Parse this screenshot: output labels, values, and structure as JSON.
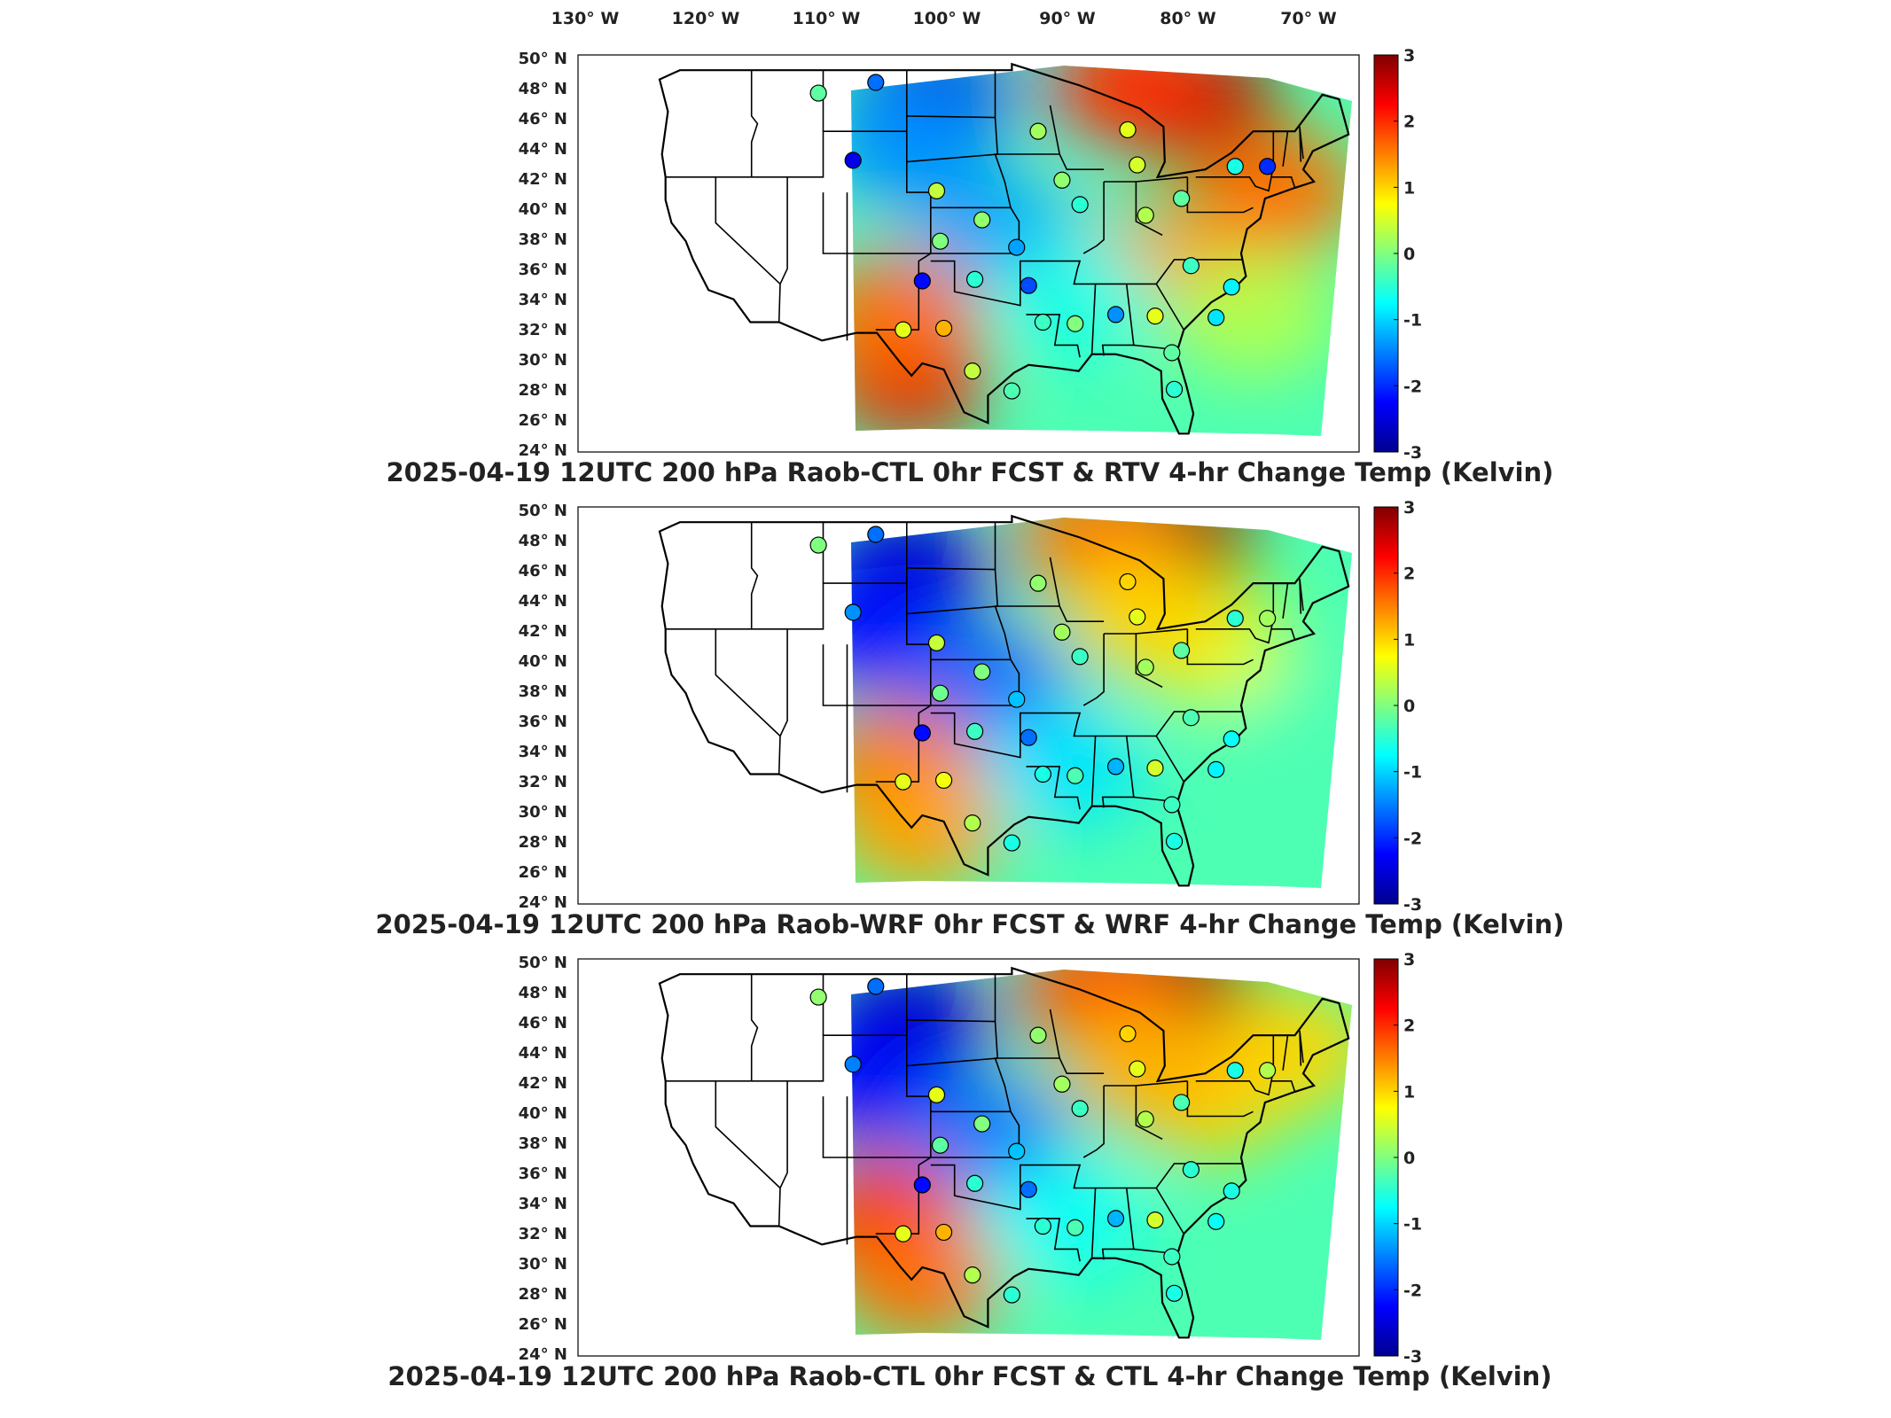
{
  "chart_data": {
    "type": "heatmap",
    "lon_ticks": [
      "130° W",
      "120° W",
      "110° W",
      "100° W",
      "90° W",
      "80° W",
      "70° W"
    ],
    "lat_ticks": [
      "50° N",
      "48° N",
      "46° N",
      "44° N",
      "42° N",
      "40° N",
      "38° N",
      "36° N",
      "34° N",
      "32° N",
      "30° N",
      "28° N",
      "26° N",
      "24° N"
    ],
    "colorbar": {
      "ticks": [
        "3",
        "2",
        "1",
        "0",
        "-1",
        "-2",
        "-3"
      ],
      "range": [
        -3,
        3
      ],
      "colormap": "jet",
      "colors": [
        "#00008f",
        "#0000ff",
        "#00ffff",
        "#ffff00",
        "#ff0000",
        "#800000"
      ]
    },
    "panels": [
      {
        "title": "2025-04-19 12UTC 200 hPa Raob-CTL 0hr FCST & RTV 4-hr Change Temp (Kelvin)",
        "blobs": [
          {
            "lon": -80,
            "lat": 47,
            "value": 2.8
          },
          {
            "lon": -85,
            "lat": 48,
            "value": 2.0
          },
          {
            "lon": -102,
            "lat": 47,
            "value": -2.4
          },
          {
            "lon": -104,
            "lat": 44,
            "value": -1.4
          },
          {
            "lon": -96,
            "lat": 38,
            "value": -1.3
          },
          {
            "lon": -104,
            "lat": 29,
            "value": 2.4
          },
          {
            "lon": -105,
            "lat": 33,
            "value": 1.6
          },
          {
            "lon": -73,
            "lat": 41,
            "value": 1.6
          },
          {
            "lon": -83,
            "lat": 36,
            "value": 1.4
          },
          {
            "lon": -90,
            "lat": 34,
            "value": -0.6
          },
          {
            "lon": -75,
            "lat": 33,
            "value": 0.3
          }
        ],
        "stations": [
          {
            "lon": -111.4,
            "lat": 47.5,
            "value": -0.2
          },
          {
            "lon": -106.6,
            "lat": 48.2,
            "value": -1.6
          },
          {
            "lon": -108.5,
            "lat": 43.1,
            "value": -2.4
          },
          {
            "lon": -101.5,
            "lat": 41.1,
            "value": 0.4
          },
          {
            "lon": -101.2,
            "lat": 37.8,
            "value": 0.0
          },
          {
            "lon": -102.7,
            "lat": 35.2,
            "value": -2.2
          },
          {
            "lon": -98.3,
            "lat": 35.3,
            "value": -0.5
          },
          {
            "lon": -94.8,
            "lat": 37.4,
            "value": -1.3
          },
          {
            "lon": -93.8,
            "lat": 34.9,
            "value": -1.8
          },
          {
            "lon": -97.7,
            "lat": 39.2,
            "value": 0.1
          },
          {
            "lon": -89.5,
            "lat": 40.2,
            "value": -0.5
          },
          {
            "lon": -84.7,
            "lat": 42.8,
            "value": 0.5
          },
          {
            "lon": -85.5,
            "lat": 45.1,
            "value": 0.6
          },
          {
            "lon": -93.0,
            "lat": 45.0,
            "value": 0.2
          },
          {
            "lon": -91.0,
            "lat": 41.8,
            "value": 0.1
          },
          {
            "lon": -84.0,
            "lat": 39.5,
            "value": 0.3
          },
          {
            "lon": -81.0,
            "lat": 40.6,
            "value": -0.2
          },
          {
            "lon": -76.5,
            "lat": 42.7,
            "value": -0.6
          },
          {
            "lon": -73.8,
            "lat": 42.7,
            "value": -2.0
          },
          {
            "lon": -80.2,
            "lat": 36.2,
            "value": -0.4
          },
          {
            "lon": -76.8,
            "lat": 34.8,
            "value": -0.8
          },
          {
            "lon": -78.1,
            "lat": 32.8,
            "value": -0.9
          },
          {
            "lon": -83.2,
            "lat": 32.9,
            "value": 0.6
          },
          {
            "lon": -86.5,
            "lat": 33.0,
            "value": -1.4
          },
          {
            "lon": -89.9,
            "lat": 32.4,
            "value": 0.0
          },
          {
            "lon": -92.6,
            "lat": 32.5,
            "value": -0.4
          },
          {
            "lon": -104.3,
            "lat": 32.0,
            "value": 0.6
          },
          {
            "lon": -100.9,
            "lat": 32.1,
            "value": 1.2
          },
          {
            "lon": -98.5,
            "lat": 29.3,
            "value": 0.4
          },
          {
            "lon": -95.2,
            "lat": 28.0,
            "value": -0.3
          },
          {
            "lon": -81.6,
            "lat": 28.1,
            "value": -0.5
          },
          {
            "lon": -81.8,
            "lat": 30.5,
            "value": -0.2
          }
        ]
      },
      {
        "title": "2025-04-19 12UTC 200 hPa Raob-WRF 0hr FCST & WRF 4-hr Change Temp (Kelvin)",
        "blobs": [
          {
            "lon": -82,
            "lat": 48,
            "value": 2.9
          },
          {
            "lon": -88,
            "lat": 48,
            "value": 1.6
          },
          {
            "lon": -104,
            "lat": 46,
            "value": -2.6
          },
          {
            "lon": -107,
            "lat": 42,
            "value": -2.2
          },
          {
            "lon": -97,
            "lat": 38,
            "value": -1.7
          },
          {
            "lon": -105,
            "lat": 33,
            "value": 1.6
          },
          {
            "lon": -103,
            "lat": 29,
            "value": 1.3
          },
          {
            "lon": -91,
            "lat": 33,
            "value": -0.9
          },
          {
            "lon": -79,
            "lat": 41,
            "value": 0.6
          },
          {
            "lon": -70,
            "lat": 35,
            "value": -0.3
          },
          {
            "lon": -84,
            "lat": 43,
            "value": 1.0
          }
        ],
        "stations": [
          {
            "lon": -111.4,
            "lat": 47.5,
            "value": 0.0
          },
          {
            "lon": -106.6,
            "lat": 48.2,
            "value": -1.6
          },
          {
            "lon": -108.5,
            "lat": 43.1,
            "value": -1.4
          },
          {
            "lon": -101.5,
            "lat": 41.1,
            "value": 0.4
          },
          {
            "lon": -101.2,
            "lat": 37.8,
            "value": -0.1
          },
          {
            "lon": -102.7,
            "lat": 35.2,
            "value": -2.2
          },
          {
            "lon": -98.3,
            "lat": 35.3,
            "value": -0.4
          },
          {
            "lon": -94.8,
            "lat": 37.4,
            "value": -1.1
          },
          {
            "lon": -93.8,
            "lat": 34.9,
            "value": -1.6
          },
          {
            "lon": -97.7,
            "lat": 39.2,
            "value": 0.0
          },
          {
            "lon": -89.5,
            "lat": 40.2,
            "value": -0.4
          },
          {
            "lon": -84.7,
            "lat": 42.8,
            "value": 0.6
          },
          {
            "lon": -85.5,
            "lat": 45.1,
            "value": 1.0
          },
          {
            "lon": -93.0,
            "lat": 45.0,
            "value": 0.1
          },
          {
            "lon": -91.0,
            "lat": 41.8,
            "value": 0.2
          },
          {
            "lon": -84.0,
            "lat": 39.5,
            "value": 0.2
          },
          {
            "lon": -81.0,
            "lat": 40.6,
            "value": -0.2
          },
          {
            "lon": -76.5,
            "lat": 42.7,
            "value": -0.5
          },
          {
            "lon": -73.8,
            "lat": 42.7,
            "value": 0.2
          },
          {
            "lon": -80.2,
            "lat": 36.2,
            "value": -0.3
          },
          {
            "lon": -76.8,
            "lat": 34.8,
            "value": -0.7
          },
          {
            "lon": -78.1,
            "lat": 32.8,
            "value": -0.8
          },
          {
            "lon": -83.2,
            "lat": 32.9,
            "value": 0.5
          },
          {
            "lon": -86.5,
            "lat": 33.0,
            "value": -1.2
          },
          {
            "lon": -89.9,
            "lat": 32.4,
            "value": -0.3
          },
          {
            "lon": -92.6,
            "lat": 32.5,
            "value": -0.6
          },
          {
            "lon": -104.3,
            "lat": 32.0,
            "value": 0.6
          },
          {
            "lon": -100.9,
            "lat": 32.1,
            "value": 0.7
          },
          {
            "lon": -98.5,
            "lat": 29.3,
            "value": 0.3
          },
          {
            "lon": -95.2,
            "lat": 28.0,
            "value": -0.6
          },
          {
            "lon": -81.6,
            "lat": 28.1,
            "value": -0.6
          },
          {
            "lon": -81.8,
            "lat": 30.5,
            "value": -0.4
          }
        ]
      },
      {
        "title": "2025-04-19 12UTC 200 hPa Raob-CTL 0hr FCST & CTL 4-hr Change Temp (Kelvin)",
        "blobs": [
          {
            "lon": -82,
            "lat": 48,
            "value": 2.9
          },
          {
            "lon": -88,
            "lat": 48,
            "value": 1.8
          },
          {
            "lon": -104,
            "lat": 46,
            "value": -2.6
          },
          {
            "lon": -107,
            "lat": 42,
            "value": -2.3
          },
          {
            "lon": -97,
            "lat": 38,
            "value": -1.6
          },
          {
            "lon": -106,
            "lat": 33,
            "value": 2.0
          },
          {
            "lon": -103,
            "lat": 29,
            "value": 1.6
          },
          {
            "lon": -91,
            "lat": 33,
            "value": -0.7
          },
          {
            "lon": -79,
            "lat": 41,
            "value": 1.0
          },
          {
            "lon": -72,
            "lat": 44,
            "value": 1.0
          },
          {
            "lon": -84,
            "lat": 43,
            "value": 1.2
          }
        ],
        "stations": [
          {
            "lon": -111.4,
            "lat": 47.5,
            "value": 0.1
          },
          {
            "lon": -106.6,
            "lat": 48.2,
            "value": -1.6
          },
          {
            "lon": -108.5,
            "lat": 43.1,
            "value": -1.5
          },
          {
            "lon": -101.5,
            "lat": 41.1,
            "value": 0.6
          },
          {
            "lon": -101.2,
            "lat": 37.8,
            "value": -0.2
          },
          {
            "lon": -102.7,
            "lat": 35.2,
            "value": -2.2
          },
          {
            "lon": -98.3,
            "lat": 35.3,
            "value": -0.5
          },
          {
            "lon": -94.8,
            "lat": 37.4,
            "value": -1.1
          },
          {
            "lon": -93.8,
            "lat": 34.9,
            "value": -1.6
          },
          {
            "lon": -97.7,
            "lat": 39.2,
            "value": 0.0
          },
          {
            "lon": -89.5,
            "lat": 40.2,
            "value": -0.4
          },
          {
            "lon": -84.7,
            "lat": 42.8,
            "value": 0.6
          },
          {
            "lon": -85.5,
            "lat": 45.1,
            "value": 1.0
          },
          {
            "lon": -93.0,
            "lat": 45.0,
            "value": 0.1
          },
          {
            "lon": -91.0,
            "lat": 41.8,
            "value": 0.2
          },
          {
            "lon": -84.0,
            "lat": 39.5,
            "value": 0.3
          },
          {
            "lon": -81.0,
            "lat": 40.6,
            "value": -0.3
          },
          {
            "lon": -76.5,
            "lat": 42.7,
            "value": -0.6
          },
          {
            "lon": -73.8,
            "lat": 42.7,
            "value": 0.3
          },
          {
            "lon": -80.2,
            "lat": 36.2,
            "value": -0.5
          },
          {
            "lon": -76.8,
            "lat": 34.8,
            "value": -0.6
          },
          {
            "lon": -78.1,
            "lat": 32.8,
            "value": -0.7
          },
          {
            "lon": -83.2,
            "lat": 32.9,
            "value": 0.5
          },
          {
            "lon": -86.5,
            "lat": 33.0,
            "value": -1.2
          },
          {
            "lon": -89.9,
            "lat": 32.4,
            "value": -0.3
          },
          {
            "lon": -92.6,
            "lat": 32.5,
            "value": -0.5
          },
          {
            "lon": -104.3,
            "lat": 32.0,
            "value": 0.6
          },
          {
            "lon": -100.9,
            "lat": 32.1,
            "value": 1.2
          },
          {
            "lon": -98.5,
            "lat": 29.3,
            "value": 0.3
          },
          {
            "lon": -95.2,
            "lat": 28.0,
            "value": -0.5
          },
          {
            "lon": -81.6,
            "lat": 28.1,
            "value": -0.6
          },
          {
            "lon": -81.8,
            "lat": 30.5,
            "value": -0.4
          }
        ]
      }
    ]
  }
}
